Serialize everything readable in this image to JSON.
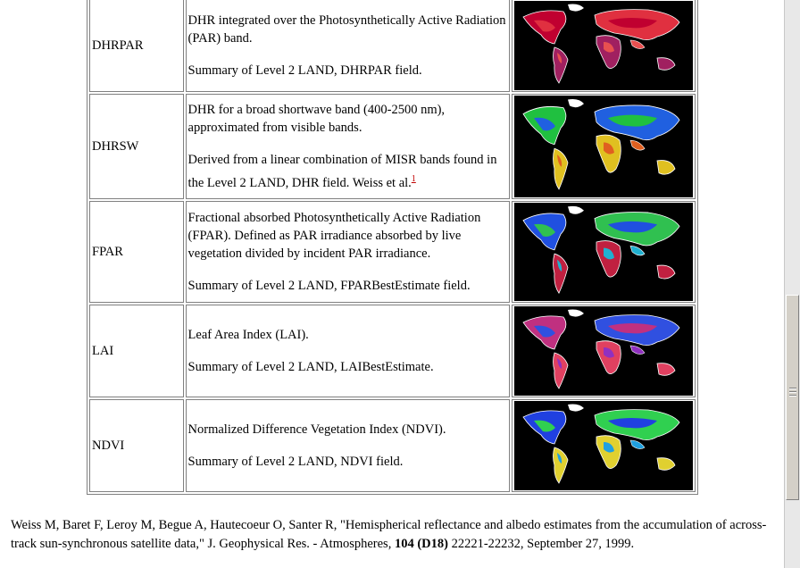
{
  "rows": [
    {
      "name": "DHRPAR",
      "desc1": "DHR integrated over the Photosynthetically Active Radiation (PAR) band.",
      "desc2": "Summary of Level 2 LAND, DHRPAR field.",
      "palette": [
        "#c00030",
        "#e03040",
        "#a02060",
        "#e85050"
      ]
    },
    {
      "name": "DHRSW",
      "desc1": "DHR for a broad shortwave band (400-2500 nm), approximated from visible bands.",
      "desc2": "Derived from a linear combination of MISR bands found in the Level 2 LAND, DHR field. Weiss et al.",
      "footnote": "1",
      "palette": [
        "#20c040",
        "#2060e0",
        "#e0c020",
        "#e06020"
      ]
    },
    {
      "name": "FPAR",
      "desc1": "Fractional absorbed Photosynthetically Active Radiation (FPAR). Defined as PAR irradiance absorbed by live vegetation divided by incident PAR irradiance.",
      "desc2": "Summary of Level 2 LAND, FPARBestEstimate field.",
      "palette": [
        "#2050e0",
        "#30c050",
        "#c02040",
        "#20b0d0"
      ]
    },
    {
      "name": "LAI",
      "desc1": "Leaf Area Index (LAI).",
      "desc2": "Summary of Level 2 LAND, LAIBestEstimate.",
      "palette": [
        "#c03080",
        "#3050e0",
        "#e04060",
        "#9030c0"
      ]
    },
    {
      "name": "NDVI",
      "desc1": "Normalized Difference Vegetation Index (NDVI).",
      "desc2": "Summary of Level 2 LAND, NDVI field.",
      "palette": [
        "#2040e0",
        "#30d050",
        "#e0d030",
        "#20a0e0"
      ]
    }
  ],
  "reference": {
    "text_before": "Weiss M, Baret F, Leroy M, Begue A, Hautecoeur O, Santer R, \"Hemispherical reflectance and albedo estimates from the accumulation of across-track sun-synchronous satellite data,\" J. Geophysical Res. - Atmospheres, ",
    "volume": "104 (D18)",
    "text_after": " 22221-22232, September 27, 1999."
  }
}
